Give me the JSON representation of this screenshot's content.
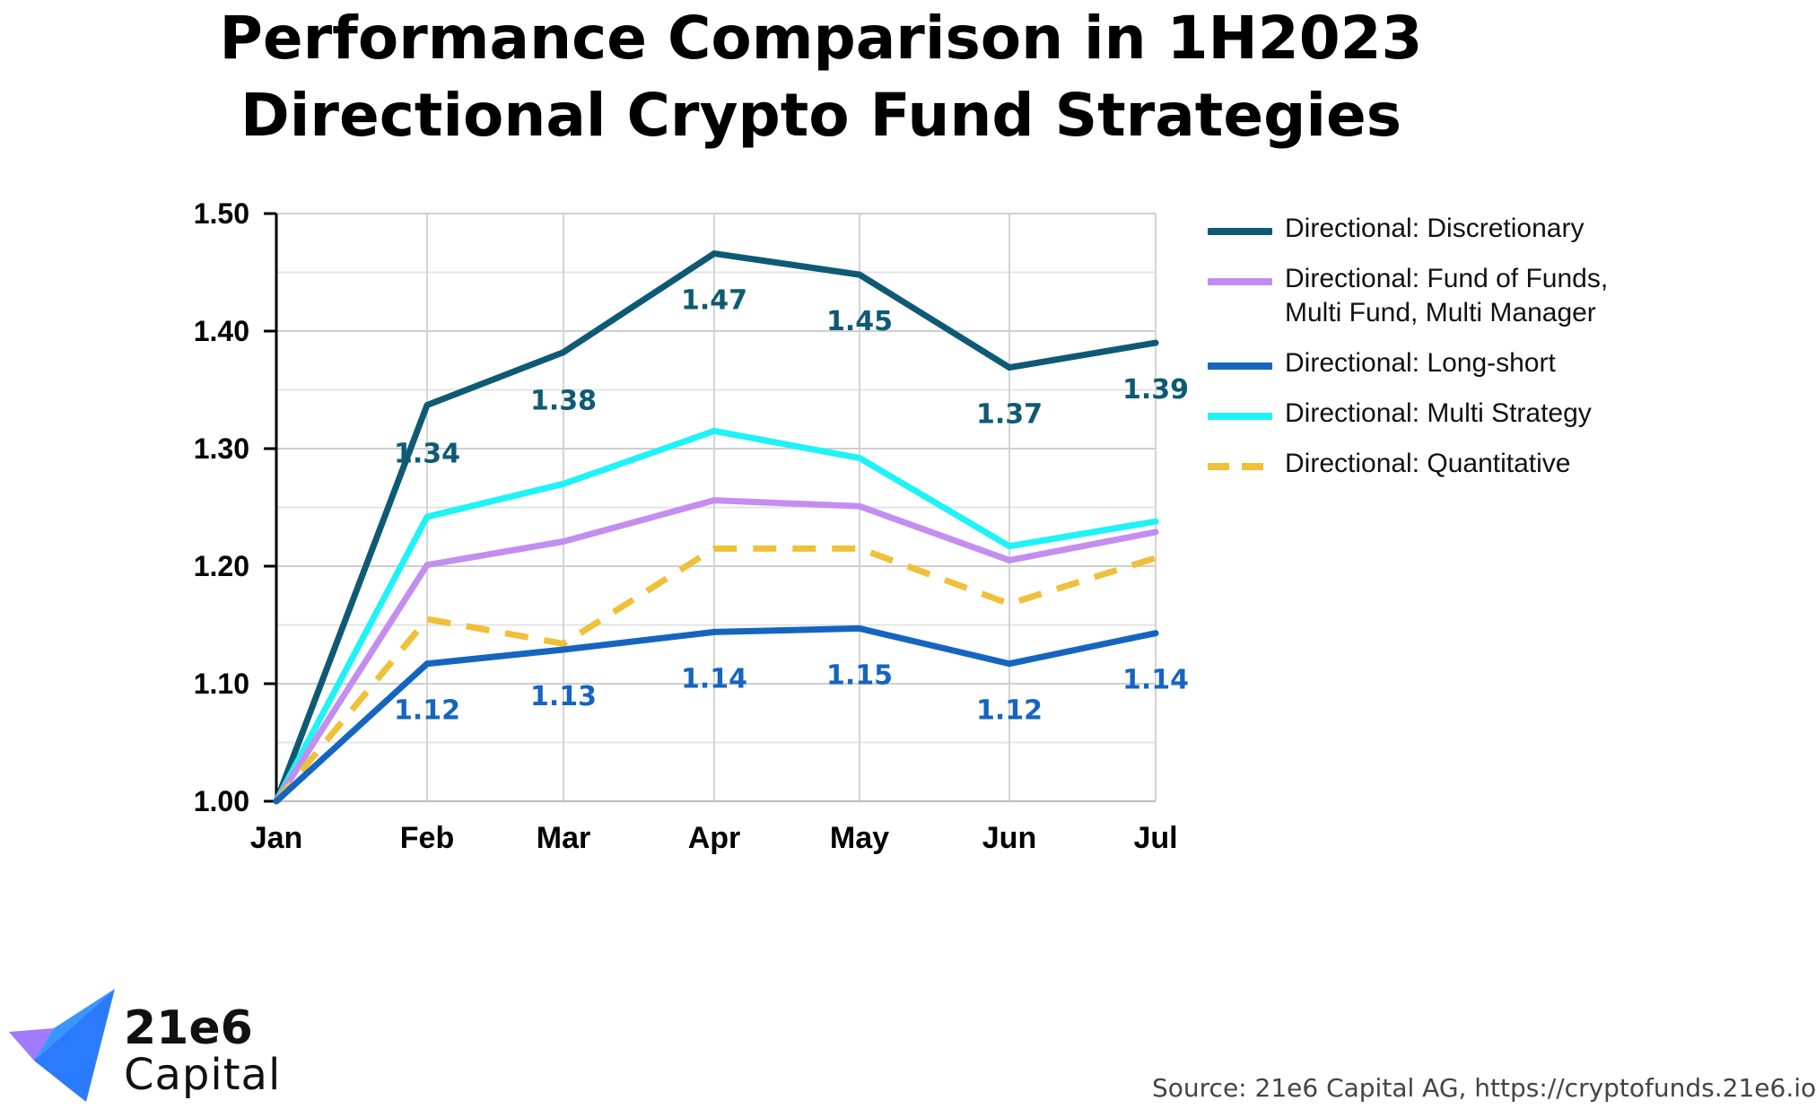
{
  "title_line1": "Performance Comparison in 1H2023",
  "title_line2": "Directional Crypto Fund Strategies",
  "source": "Source: 21e6 Capital AG, https://cryptofunds.21e6.io",
  "logo": {
    "line1": "21e6",
    "line2": "Capital"
  },
  "chart_data": {
    "type": "line",
    "categories": [
      "Jan",
      "Feb",
      "Mar",
      "Apr",
      "May",
      "Jun",
      "Jul"
    ],
    "ylim": [
      1.0,
      1.5
    ],
    "yticks": [
      "1.00",
      "1.10",
      "1.20",
      "1.30",
      "1.40",
      "1.50"
    ],
    "grid": true,
    "legend_position": "right",
    "series": [
      {
        "name": "Directional: Discretionary",
        "color": "#0e5a74",
        "style": "solid",
        "values": [
          1.0,
          1.337,
          1.382,
          1.466,
          1.448,
          1.369,
          1.39
        ],
        "labels": [
          "",
          "1.34",
          "1.38",
          "1.47",
          "1.45",
          "1.37",
          "1.39"
        ]
      },
      {
        "name": "Directional: Fund of Funds, Multi Fund, Multi Manager",
        "color": "#c38ef0",
        "style": "solid",
        "values": [
          1.0,
          1.201,
          1.221,
          1.256,
          1.251,
          1.205,
          1.229
        ],
        "labels": []
      },
      {
        "name": "Directional: Long-short",
        "color": "#1565c0",
        "style": "solid",
        "values": [
          1.0,
          1.117,
          1.129,
          1.144,
          1.147,
          1.117,
          1.143
        ],
        "labels": [
          "",
          "1.12",
          "1.13",
          "1.14",
          "1.15",
          "1.12",
          "1.14"
        ]
      },
      {
        "name": "Directional: Multi Strategy",
        "color": "#1ef3f7",
        "style": "solid",
        "values": [
          1.0,
          1.242,
          1.27,
          1.315,
          1.292,
          1.217,
          1.238
        ],
        "labels": []
      },
      {
        "name": "Directional: Quantitative",
        "color": "#f0c038",
        "style": "dashed",
        "values": [
          1.0,
          1.155,
          1.134,
          1.215,
          1.215,
          1.168,
          1.207
        ],
        "labels": []
      }
    ]
  }
}
